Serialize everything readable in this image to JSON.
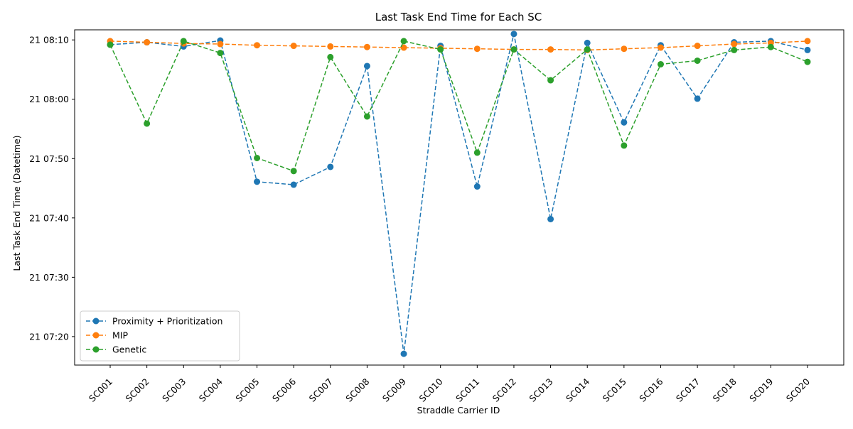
{
  "chart_data": {
    "type": "line",
    "title": "Last Task End Time for Each SC",
    "xlabel": "Straddle Carrier ID",
    "ylabel": "Last Task End Time (Datetime)",
    "categories": [
      "SC001",
      "SC002",
      "SC003",
      "SC004",
      "SC005",
      "SC006",
      "SC007",
      "SC008",
      "SC009",
      "SC010",
      "SC011",
      "SC012",
      "SC013",
      "SC014",
      "SC015",
      "SC016",
      "SC017",
      "SC018",
      "SC019",
      "SC020"
    ],
    "y_unit": "minutes past 07:00 on day 21",
    "ylim": [
      15.2,
      71.7
    ],
    "yticks": [
      {
        "value": 20,
        "label": "21 07:20"
      },
      {
        "value": 30,
        "label": "21 07:30"
      },
      {
        "value": 40,
        "label": "21 07:40"
      },
      {
        "value": 50,
        "label": "21 07:50"
      },
      {
        "value": 60,
        "label": "21 08:00"
      },
      {
        "value": 70,
        "label": "21 08:10"
      }
    ],
    "series": [
      {
        "name": "Proximity + Prioritization",
        "color": "#1f77b4",
        "values": [
          69.2,
          69.6,
          68.9,
          69.9,
          46.1,
          45.6,
          48.6,
          65.6,
          17.1,
          69.0,
          45.3,
          71.0,
          39.8,
          69.5,
          56.1,
          69.1,
          60.1,
          69.6,
          69.8,
          68.3
        ]
      },
      {
        "name": "MIP",
        "color": "#ff7f0e",
        "values": [
          69.8,
          69.6,
          69.4,
          69.3,
          69.1,
          69.0,
          68.9,
          68.8,
          68.7,
          68.6,
          68.5,
          68.4,
          68.4,
          68.3,
          68.5,
          68.7,
          69.0,
          69.3,
          69.5,
          69.8
        ]
      },
      {
        "name": "Genetic",
        "color": "#2ca02c",
        "values": [
          69.2,
          55.9,
          69.8,
          67.8,
          50.1,
          47.9,
          67.1,
          57.1,
          69.8,
          68.4,
          51.0,
          68.4,
          63.2,
          68.4,
          52.2,
          65.9,
          66.5,
          68.3,
          68.8,
          66.3
        ]
      }
    ],
    "legend_position": "lower-left",
    "grid": false
  }
}
